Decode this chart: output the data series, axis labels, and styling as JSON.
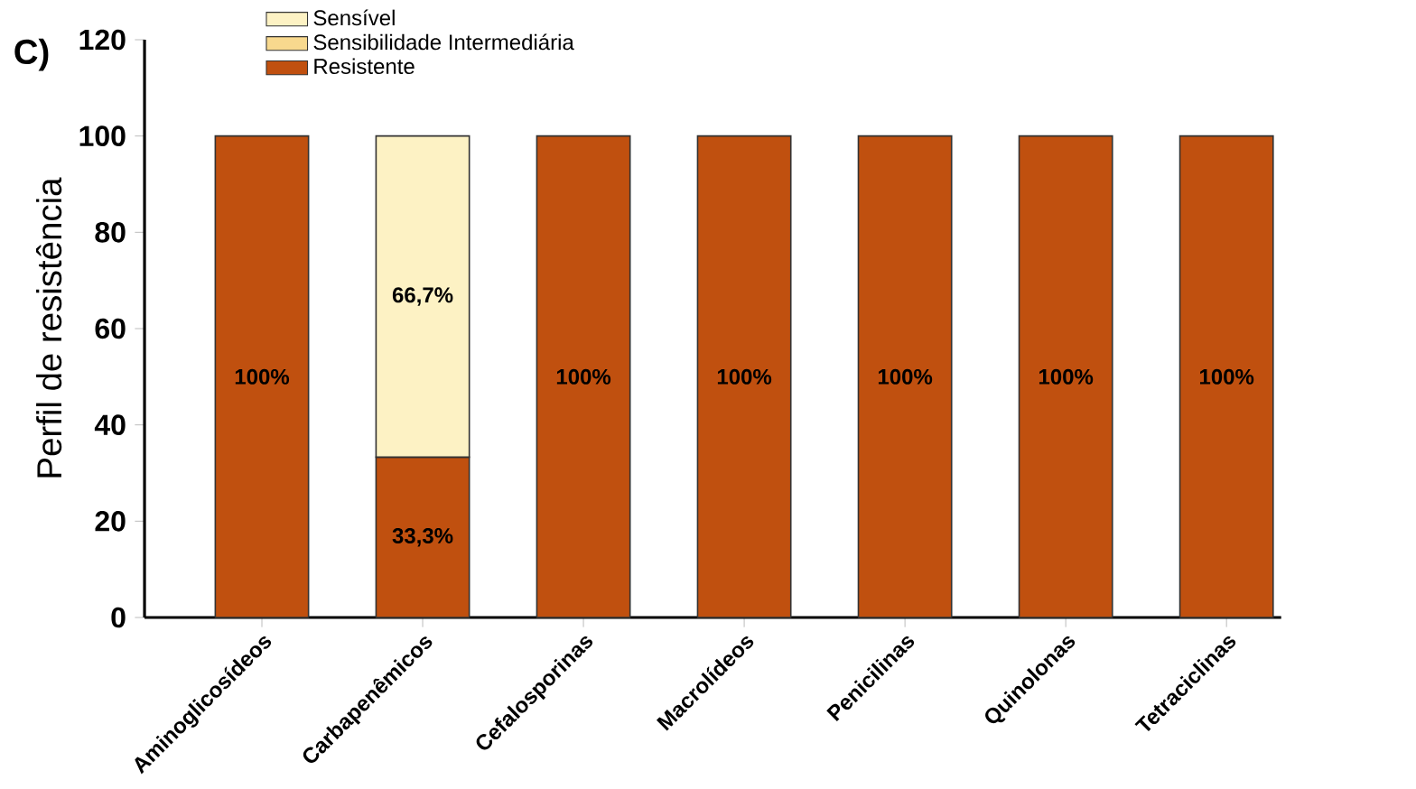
{
  "chart_data": {
    "type": "bar",
    "stacked": true,
    "ylabel": "Perfil de resistência",
    "categories": [
      "Aminoglicosídeos",
      "Carbapenêmicos",
      "Cefalosporinas",
      "Macrolídeos",
      "Penicilinas",
      "Quinolonas",
      "Tetraciclinas"
    ],
    "series": [
      {
        "name": "Resistente",
        "color": "#c0500f",
        "values": [
          100,
          33.3,
          100,
          100,
          100,
          100,
          100
        ],
        "value_labels": [
          "100%",
          "33,3%",
          "100%",
          "100%",
          "100%",
          "100%",
          "100%"
        ]
      },
      {
        "name": "Sensibilidade Intermediária",
        "color": "#f8d98e",
        "values": [
          null,
          null,
          null,
          null,
          null,
          null,
          null
        ]
      },
      {
        "name": "Sensível",
        "color": "#fdf2c4",
        "values": [
          null,
          66.7,
          null,
          null,
          null,
          null,
          null
        ],
        "value_labels": [
          null,
          "66,7%",
          null,
          null,
          null,
          null,
          null
        ]
      }
    ],
    "ylim": [
      0,
      120
    ],
    "yticks": [
      0,
      20,
      40,
      60,
      80,
      100,
      120
    ],
    "grid": false,
    "legend": "top left",
    "annotations": [
      "C)"
    ]
  }
}
